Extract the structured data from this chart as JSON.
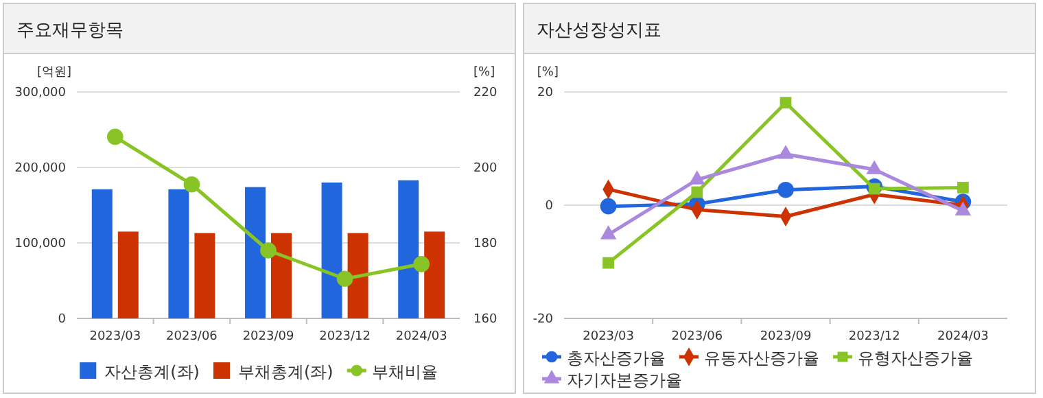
{
  "chart_data": [
    {
      "type": "bar",
      "title": "주요재무항목",
      "ylabel": "[억원]",
      "y2label": "[%]",
      "categories": [
        "2023/03",
        "2023/06",
        "2023/09",
        "2023/12",
        "2024/03"
      ],
      "series": [
        {
          "name": "자산총계(좌)",
          "color": "#2266dd",
          "values": [
            171000,
            171000,
            174000,
            180000,
            183000
          ]
        },
        {
          "name": "부채총계(좌)",
          "color": "#cc3300",
          "values": [
            115000,
            113000,
            113000,
            113000,
            115000
          ]
        },
        {
          "name": "부채비율",
          "type": "line",
          "axis": "y2",
          "marker": "circle",
          "color": "#88c425",
          "values": [
            208.1,
            195.5,
            178,
            170.5,
            174.4
          ]
        }
      ],
      "ylim": [
        0,
        300000
      ],
      "yticks": [
        {
          "value": 0,
          "label": "0"
        },
        {
          "value": 100000,
          "label": "100,000"
        },
        {
          "value": 200000,
          "label": "200,000"
        },
        {
          "value": 300000,
          "label": "300,000"
        }
      ],
      "y2lim": [
        160,
        220
      ],
      "y2ticks": [
        160,
        180,
        200,
        220
      ],
      "grid": "y",
      "legend": "bottom"
    },
    {
      "type": "line",
      "title": "자산성장성지표",
      "ylabel": "[%]",
      "categories": [
        "2023/03",
        "2023/06",
        "2023/09",
        "2023/12",
        "2024/03"
      ],
      "series": [
        {
          "name": "총자산증가율",
          "color": "#2266dd",
          "marker": "circle",
          "values": [
            -0.2,
            0.2,
            2.7,
            3.3,
            0.6
          ]
        },
        {
          "name": "유동자산증가율",
          "color": "#cc3300",
          "marker": "diamond",
          "values": [
            2.8,
            -0.8,
            -2.0,
            1.9,
            0
          ]
        },
        {
          "name": "유형자산증가율",
          "color": "#88c425",
          "marker": "square",
          "values": [
            -10.2,
            2.3,
            18.1,
            2.9,
            3.1
          ]
        },
        {
          "name": "자기자본증가율",
          "color": "#aa88dd",
          "marker": "triangle",
          "values": [
            -5.2,
            4.5,
            9.0,
            6.3,
            -1.0
          ]
        }
      ],
      "ylim": [
        -20,
        20
      ],
      "yticks": [
        -20,
        0,
        20
      ],
      "grid": "y",
      "legend": "bottom"
    }
  ]
}
